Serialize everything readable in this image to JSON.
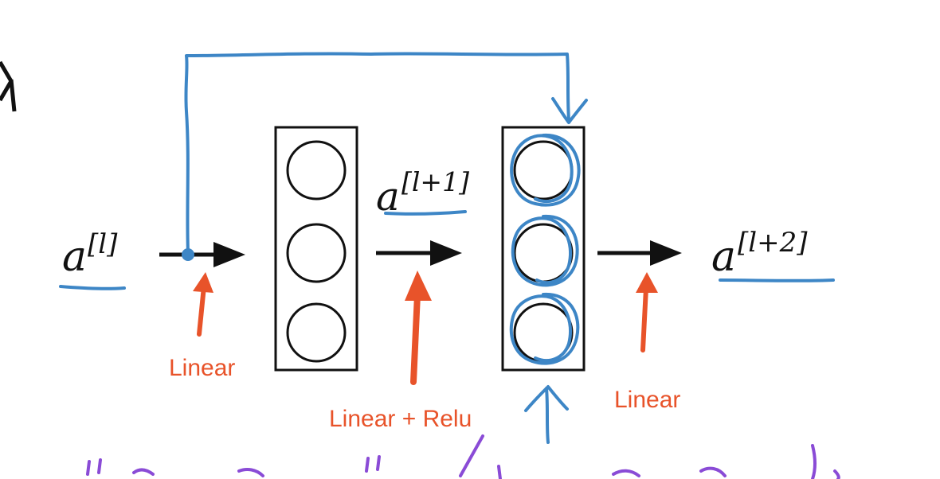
{
  "diagram": {
    "colors": {
      "ink": "#111111",
      "handwriting_blue": "#3d86c6",
      "annotation_orange": "#e8532a",
      "purple_scribble": "#8a4bd6"
    },
    "activations": {
      "input": {
        "base": "a",
        "sup": "[l]"
      },
      "middle": {
        "base": "a",
        "sup": "[l+1]"
      },
      "output": {
        "base": "a",
        "sup": "[l+2]"
      }
    },
    "layers": [
      {
        "neurons": 3
      },
      {
        "neurons": 3
      }
    ],
    "annotations": {
      "skip": "Linear",
      "layer1": "Linear + Relu",
      "layer2": "Linear"
    }
  }
}
